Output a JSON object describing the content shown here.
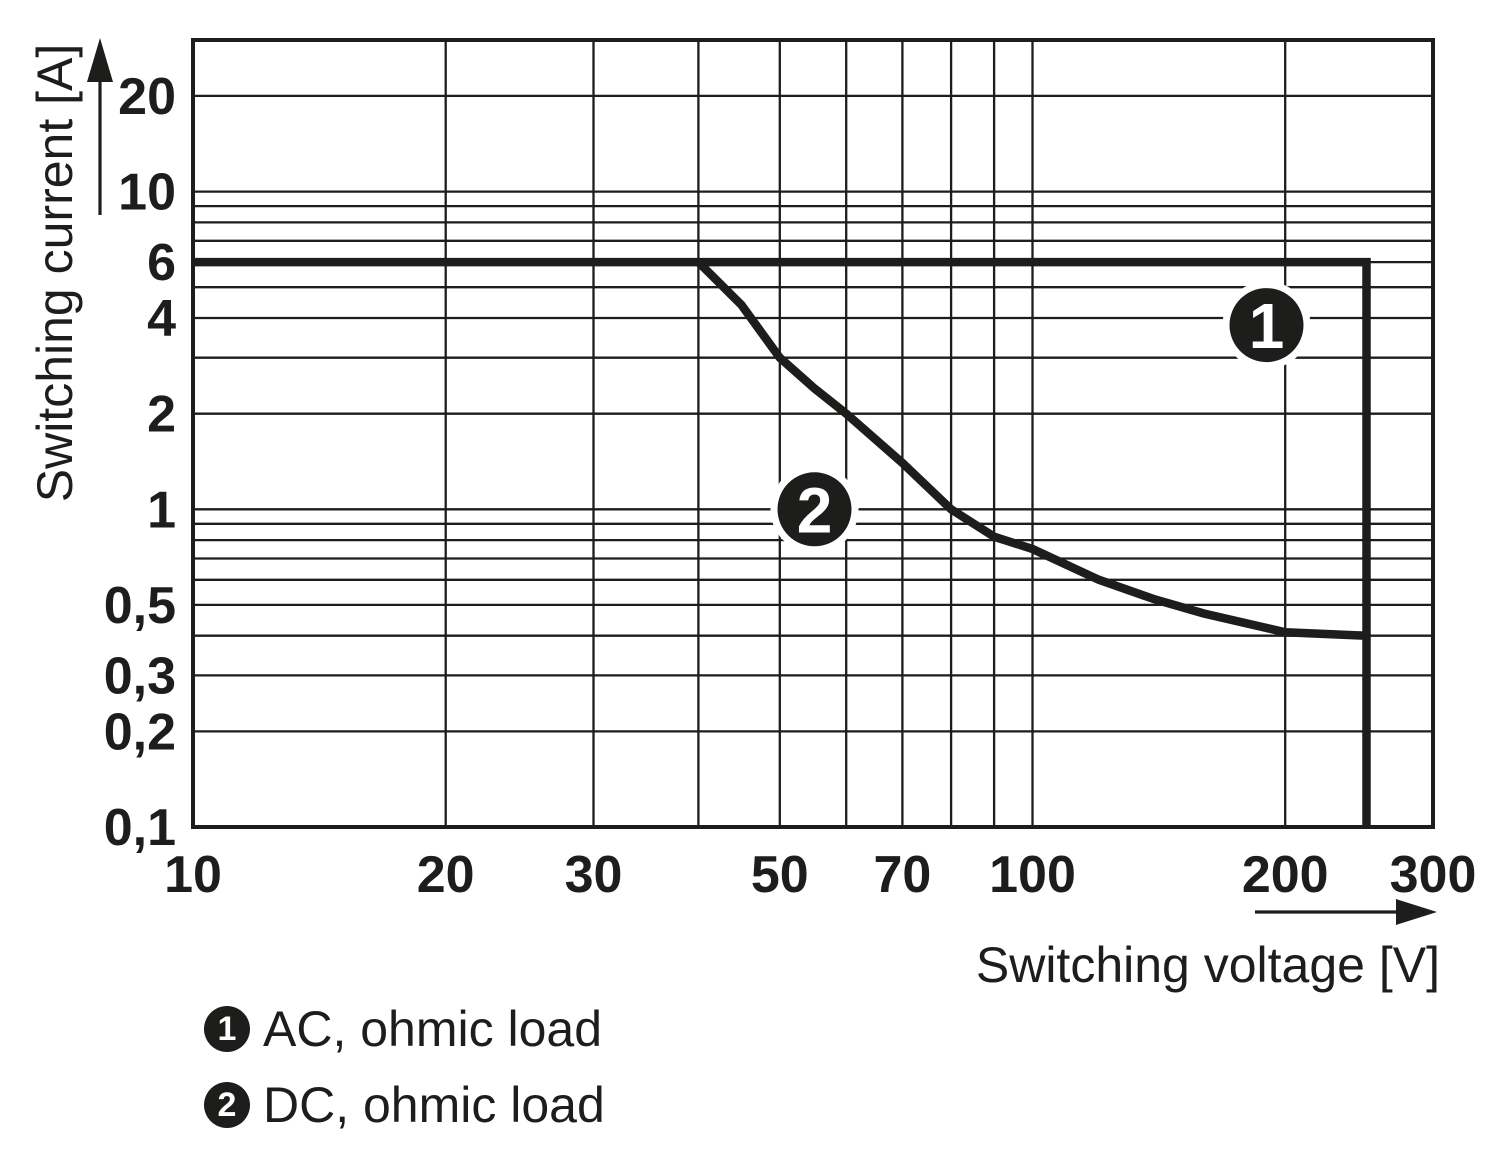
{
  "colors": {
    "ink": "#1d1d1b",
    "paper": "#ffffff"
  },
  "chart_data": {
    "type": "line",
    "xlabel": "Switching voltage [V]",
    "ylabel": "Switching current [A]",
    "x_scale": "log",
    "y_scale": "log",
    "xlim": [
      10,
      300
    ],
    "ylim": [
      0.1,
      30
    ],
    "grid": true,
    "x_ticks": [
      {
        "value": 10,
        "label": "10"
      },
      {
        "value": 20,
        "label": "20"
      },
      {
        "value": 30,
        "label": "30"
      },
      {
        "value": 50,
        "label": "50"
      },
      {
        "value": 70,
        "label": "70"
      },
      {
        "value": 100,
        "label": "100"
      },
      {
        "value": 200,
        "label": "200"
      },
      {
        "value": 300,
        "label": "300"
      }
    ],
    "y_ticks": [
      {
        "value": 20,
        "label": "20"
      },
      {
        "value": 10,
        "label": "10"
      },
      {
        "value": 6,
        "label": "6"
      },
      {
        "value": 4,
        "label": "4"
      },
      {
        "value": 2,
        "label": "2"
      },
      {
        "value": 1,
        "label": "1"
      },
      {
        "value": 0.5,
        "label": "0,5"
      },
      {
        "value": 0.3,
        "label": "0,3"
      },
      {
        "value": 0.2,
        "label": "0,2"
      },
      {
        "value": 0.1,
        "label": "0,1"
      }
    ],
    "grid_x": [
      20,
      30,
      40,
      50,
      60,
      70,
      80,
      90,
      100,
      200
    ],
    "grid_y": [
      0.2,
      0.3,
      0.4,
      0.5,
      0.6,
      0.7,
      0.8,
      0.9,
      1,
      2,
      3,
      4,
      5,
      6,
      7,
      8,
      9,
      10,
      20
    ],
    "series": [
      {
        "id": "1",
        "name": "AC, ohmic load",
        "points": [
          [
            10,
            6
          ],
          [
            250,
            6
          ],
          [
            250,
            0.1
          ]
        ]
      },
      {
        "id": "2",
        "name": "DC, ohmic load",
        "points": [
          [
            40,
            6
          ],
          [
            45,
            4.4
          ],
          [
            50,
            3
          ],
          [
            55,
            2.4
          ],
          [
            60,
            2
          ],
          [
            70,
            1.4
          ],
          [
            80,
            1
          ],
          [
            90,
            0.82
          ],
          [
            100,
            0.75
          ],
          [
            120,
            0.6
          ],
          [
            140,
            0.52
          ],
          [
            160,
            0.47
          ],
          [
            200,
            0.41
          ],
          [
            250,
            0.4
          ]
        ]
      }
    ],
    "annotations": [
      {
        "label": "1",
        "x": 190,
        "y": 3.8
      },
      {
        "label": "2",
        "x": 55,
        "y": 1.0
      }
    ],
    "legend_position": "bottom-left"
  },
  "legend": {
    "items": [
      {
        "marker": "1",
        "label": "AC, ohmic load"
      },
      {
        "marker": "2",
        "label": "DC, ohmic load"
      }
    ]
  }
}
